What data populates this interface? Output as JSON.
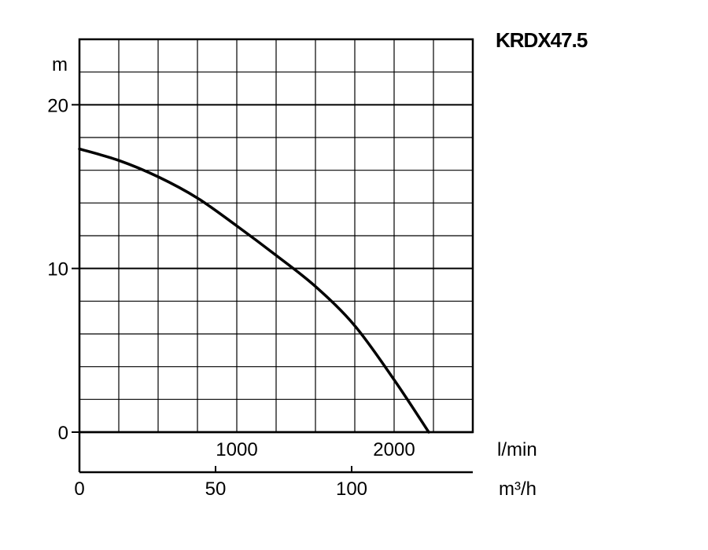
{
  "chart_data": {
    "type": "line",
    "title": "KRDX47.5",
    "ylabel": "m",
    "xlabel_primary": "l/min",
    "xlabel_secondary": "m³/h",
    "ylim": [
      0,
      24
    ],
    "xlim": [
      0,
      2500
    ],
    "grid": true,
    "y_ticks": [
      "0",
      "10",
      "20"
    ],
    "y_tick_values": [
      0,
      10,
      20
    ],
    "x_ticks_primary": [
      "1000",
      "2000"
    ],
    "x_tick_values_primary": [
      1000,
      2000
    ],
    "x_ticks_secondary": [
      "0",
      "50",
      "100"
    ],
    "x_tick_values_secondary": [
      0,
      50,
      100
    ],
    "series": [
      {
        "x": [
          0,
          250,
          500,
          750,
          1000,
          1250,
          1500,
          1750,
          2000,
          2220
        ],
        "y": [
          17.3,
          16.6,
          15.6,
          14.3,
          12.6,
          10.8,
          8.9,
          6.5,
          3.2,
          0
        ]
      }
    ]
  }
}
